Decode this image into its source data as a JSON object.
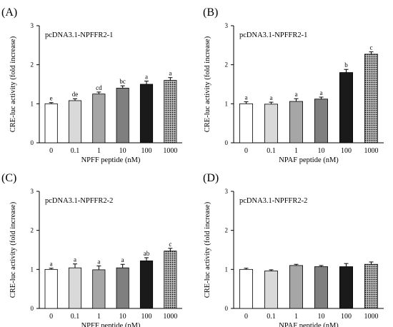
{
  "colors": {
    "axis": "#000000",
    "bar_stroke": "#000000",
    "error_bar": "#000000"
  },
  "bar_styles": [
    {
      "fill": "#ffffff",
      "pattern": "none"
    },
    {
      "fill": "#d9d9d9",
      "pattern": "none"
    },
    {
      "fill": "#a6a6a6",
      "pattern": "none"
    },
    {
      "fill": "#7f7f7f",
      "pattern": "none"
    },
    {
      "fill": "#1a1a1a",
      "pattern": "none"
    },
    {
      "fill": "#bfbfbf",
      "pattern": "dots"
    }
  ],
  "chart_data": [
    {
      "type": "bar",
      "panel_label": "(A)",
      "annotation": "pcDNA3.1-NPFFR2-1",
      "xlabel": "NPFF peptide (nM)",
      "ylabel": "CRE-luc activity (fold increase)",
      "categories": [
        "0",
        "0.1",
        "1",
        "10",
        "100",
        "1000"
      ],
      "values": [
        1.0,
        1.08,
        1.25,
        1.4,
        1.5,
        1.6
      ],
      "errors": [
        0.03,
        0.05,
        0.05,
        0.06,
        0.08,
        0.07
      ],
      "significance": [
        "e",
        "de",
        "cd",
        "bc",
        "a",
        "a"
      ],
      "ylim": [
        0,
        3
      ],
      "yticks": [
        0,
        1,
        2,
        3
      ]
    },
    {
      "type": "bar",
      "panel_label": "(B)",
      "annotation": "pcDNA3.1-NPFFR2-1",
      "xlabel": "NPAF peptide (nM)",
      "ylabel": "CRE-luc activity (fold increase)",
      "categories": [
        "0",
        "0.1",
        "1",
        "10",
        "100",
        "1000"
      ],
      "values": [
        1.0,
        0.99,
        1.06,
        1.12,
        1.8,
        2.27
      ],
      "errors": [
        0.05,
        0.05,
        0.07,
        0.05,
        0.08,
        0.06
      ],
      "significance": [
        "a",
        "a",
        "a",
        "a",
        "b",
        "c"
      ],
      "ylim": [
        0,
        3
      ],
      "yticks": [
        0,
        1,
        2,
        3
      ]
    },
    {
      "type": "bar",
      "panel_label": "(C)",
      "annotation": "pcDNA3.1-NPFFR2-2",
      "xlabel": "NPFF peptide (nM)",
      "ylabel": "CRE-luc activity (fold increase)",
      "categories": [
        "0",
        "0.1",
        "1",
        "10",
        "100",
        "1000"
      ],
      "values": [
        1.0,
        1.04,
        0.99,
        1.04,
        1.22,
        1.47
      ],
      "errors": [
        0.03,
        0.1,
        0.1,
        0.09,
        0.08,
        0.07
      ],
      "significance": [
        "a",
        "a",
        "a",
        "a",
        "ab",
        "c"
      ],
      "ylim": [
        0,
        3
      ],
      "yticks": [
        0,
        1,
        2,
        3
      ]
    },
    {
      "type": "bar",
      "panel_label": "(D)",
      "annotation": "pcDNA3.1-NPFFR2-2",
      "xlabel": "NPAF peptide (nM)",
      "ylabel": "CRE-luc activity (fold increase)",
      "categories": [
        "0",
        "0.1",
        "1",
        "10",
        "100",
        "1000"
      ],
      "values": [
        1.0,
        0.96,
        1.1,
        1.07,
        1.07,
        1.13
      ],
      "errors": [
        0.03,
        0.03,
        0.03,
        0.03,
        0.08,
        0.06
      ],
      "significance": [
        "",
        "",
        "",
        "",
        "",
        ""
      ],
      "ylim": [
        0,
        3
      ],
      "yticks": [
        0,
        1,
        2,
        3
      ]
    }
  ]
}
